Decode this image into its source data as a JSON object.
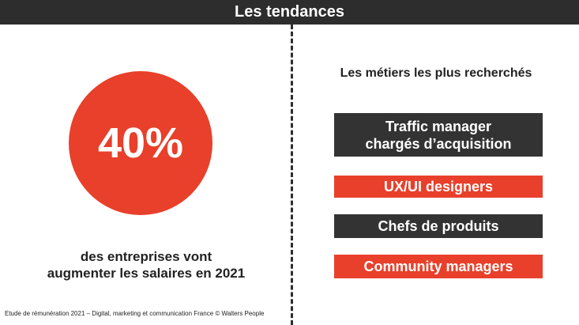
{
  "header": {
    "title": "Les tendances"
  },
  "left": {
    "stat_value": "40%",
    "stat_text_line1": "des entreprises vont",
    "stat_text_line2": "augmenter les salaires en 2021",
    "accent_color": "#e8402b"
  },
  "right": {
    "title": "Les métiers les plus recherchés",
    "jobs": [
      {
        "line1": "Traffic manager",
        "line2": "chargés d’acquisition",
        "style": "dark"
      },
      {
        "line1": "UX/UI designers",
        "style": "red"
      },
      {
        "line1": "Chefs de produits",
        "style": "dark"
      },
      {
        "line1": "Community managers",
        "style": "red"
      }
    ],
    "dark_color": "#333333"
  },
  "footer": {
    "text": "Etude de rémunération 2021 – Digital, marketing et communication France © Walters People"
  }
}
